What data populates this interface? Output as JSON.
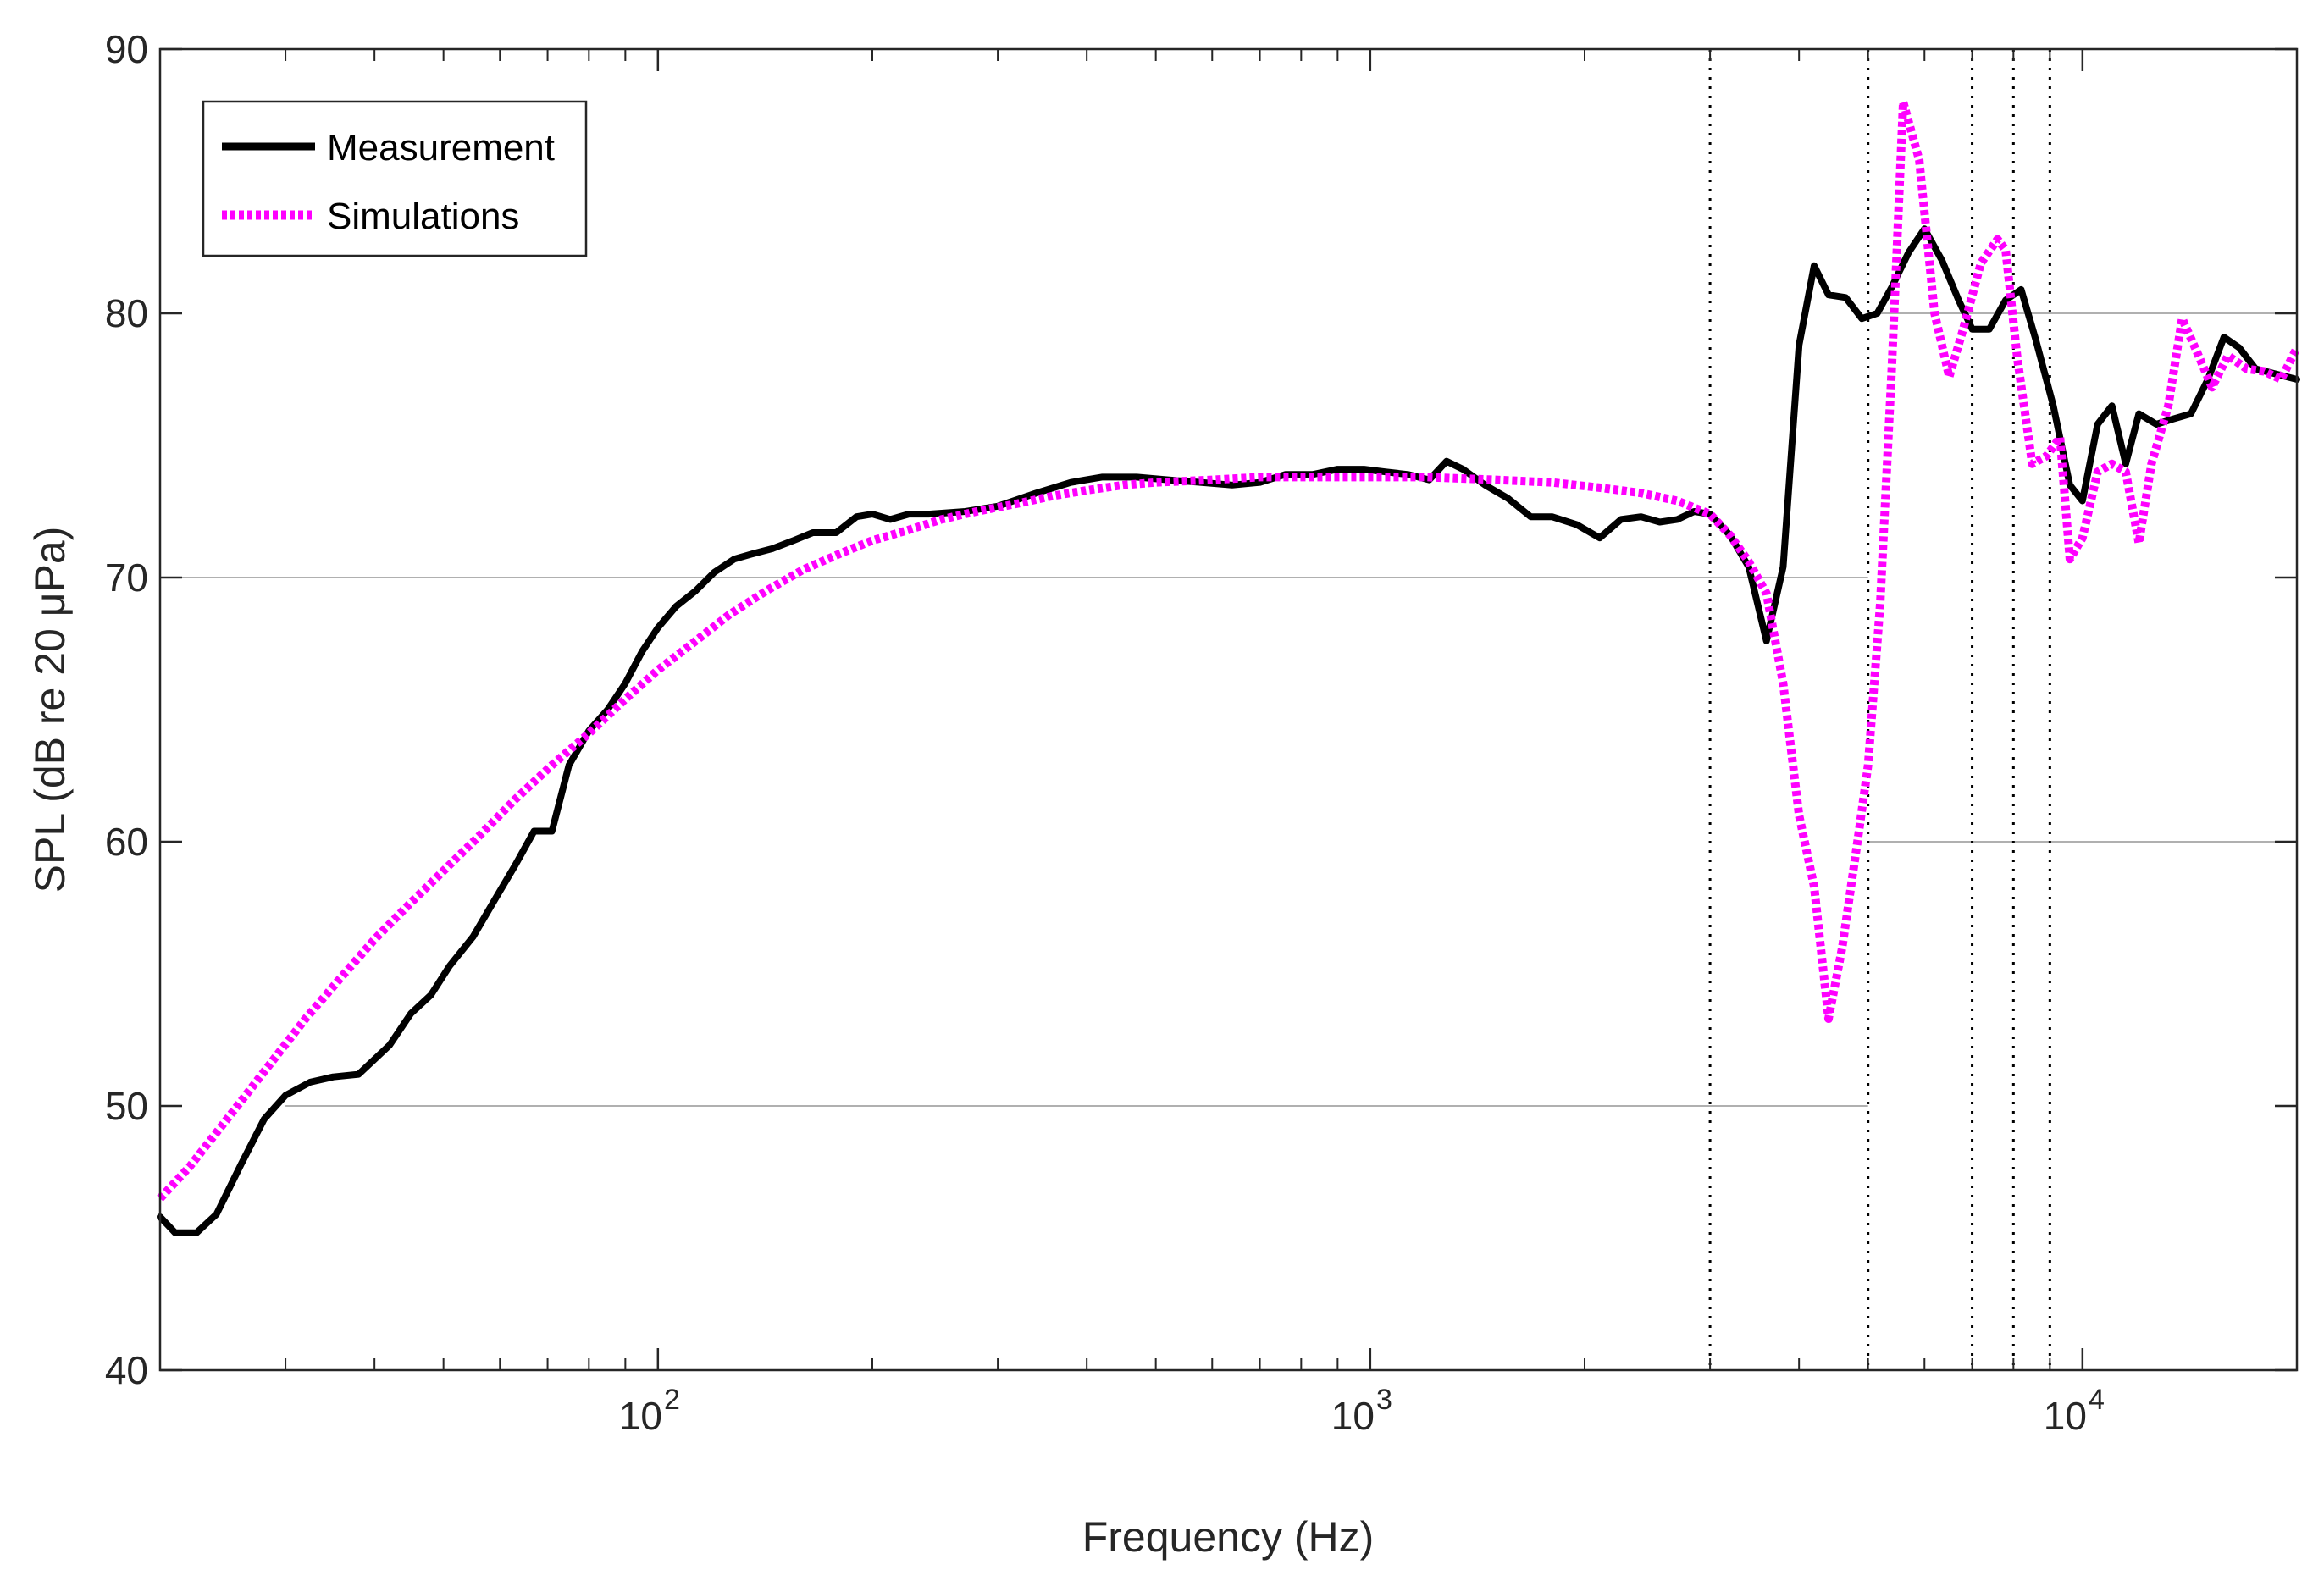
{
  "chart_data": {
    "type": "line",
    "xscale": "log",
    "xlim": [
      20,
      20000
    ],
    "ylim": [
      40,
      90
    ],
    "xlabel": "Frequency (Hz)",
    "ylabel": "SPL (dB re 20 μPa)",
    "yticks": [
      {
        "value": 40,
        "label": "40"
      },
      {
        "value": 50,
        "label": "50"
      },
      {
        "value": 60,
        "label": "60"
      },
      {
        "value": 70,
        "label": "70"
      },
      {
        "value": 80,
        "label": "80"
      },
      {
        "value": 90,
        "label": "90"
      }
    ],
    "xticks": [
      {
        "value": 100,
        "base": "10",
        "exp": "2"
      },
      {
        "value": 1000,
        "base": "10",
        "exp": "3"
      },
      {
        "value": 10000,
        "base": "10",
        "exp": "4"
      }
    ],
    "legend": {
      "placement": "top-left",
      "entries": [
        {
          "label": "Measurement",
          "color": "#000000",
          "style": "solid"
        },
        {
          "label": "Simulations",
          "color": "#ff00ff",
          "style": "dotted"
        }
      ]
    },
    "reference_lines": [
      {
        "y": 50,
        "x_from": 30,
        "x_to": 5000
      },
      {
        "y": 60,
        "x_from": 5000,
        "x_to": 20000
      },
      {
        "y": 70,
        "x_from": 20,
        "x_to": 5000
      },
      {
        "y": 80,
        "x_from": 5000,
        "x_to": 20000
      }
    ],
    "vertical_markers": [
      3000,
      5000,
      7000,
      8000,
      9000
    ],
    "series": [
      {
        "name": "Measurement",
        "color": "#000000",
        "points": [
          [
            20,
            45.8
          ],
          [
            21,
            45.2
          ],
          [
            22.5,
            45.2
          ],
          [
            24,
            45.9
          ],
          [
            26,
            47.8
          ],
          [
            28,
            49.5
          ],
          [
            30,
            50.4
          ],
          [
            32.5,
            50.9
          ],
          [
            35,
            51.1
          ],
          [
            38,
            51.2
          ],
          [
            42,
            52.3
          ],
          [
            45,
            53.5
          ],
          [
            48,
            54.2
          ],
          [
            51,
            55.3
          ],
          [
            55,
            56.4
          ],
          [
            59,
            57.8
          ],
          [
            63,
            59.1
          ],
          [
            67,
            60.4
          ],
          [
            71,
            60.4
          ],
          [
            75,
            62.9
          ],
          [
            80,
            64.2
          ],
          [
            85,
            65.0
          ],
          [
            90,
            66.0
          ],
          [
            95,
            67.2
          ],
          [
            100,
            68.1
          ],
          [
            106,
            68.9
          ],
          [
            113,
            69.5
          ],
          [
            120,
            70.2
          ],
          [
            128,
            70.7
          ],
          [
            136,
            70.9
          ],
          [
            145,
            71.1
          ],
          [
            155,
            71.4
          ],
          [
            165,
            71.7
          ],
          [
            178,
            71.7
          ],
          [
            190,
            72.3
          ],
          [
            200,
            72.4
          ],
          [
            212,
            72.2
          ],
          [
            225,
            72.4
          ],
          [
            240,
            72.4
          ],
          [
            270,
            72.5
          ],
          [
            300,
            72.7
          ],
          [
            340,
            73.2
          ],
          [
            380,
            73.6
          ],
          [
            420,
            73.8
          ],
          [
            470,
            73.8
          ],
          [
            520,
            73.7
          ],
          [
            580,
            73.6
          ],
          [
            640,
            73.5
          ],
          [
            700,
            73.6
          ],
          [
            760,
            73.9
          ],
          [
            830,
            73.9
          ],
          [
            900,
            74.1
          ],
          [
            980,
            74.1
          ],
          [
            1050,
            74.0
          ],
          [
            1130,
            73.9
          ],
          [
            1210,
            73.7
          ],
          [
            1280,
            74.4
          ],
          [
            1350,
            74.1
          ],
          [
            1450,
            73.5
          ],
          [
            1560,
            73.0
          ],
          [
            1680,
            72.3
          ],
          [
            1800,
            72.3
          ],
          [
            1950,
            72.0
          ],
          [
            2100,
            71.5
          ],
          [
            2250,
            72.2
          ],
          [
            2400,
            72.3
          ],
          [
            2550,
            72.1
          ],
          [
            2700,
            72.2
          ],
          [
            2850,
            72.5
          ],
          [
            3000,
            72.4
          ],
          [
            3200,
            71.6
          ],
          [
            3400,
            70.4
          ],
          [
            3600,
            67.6
          ],
          [
            3800,
            70.4
          ],
          [
            4000,
            78.8
          ],
          [
            4200,
            81.8
          ],
          [
            4400,
            80.7
          ],
          [
            4650,
            80.6
          ],
          [
            4900,
            79.8
          ],
          [
            5150,
            80.0
          ],
          [
            5400,
            81.0
          ],
          [
            5700,
            82.3
          ],
          [
            6000,
            83.2
          ],
          [
            6350,
            82.0
          ],
          [
            6700,
            80.5
          ],
          [
            7000,
            79.4
          ],
          [
            7400,
            79.4
          ],
          [
            7800,
            80.5
          ],
          [
            8200,
            80.9
          ],
          [
            8600,
            79.0
          ],
          [
            9100,
            76.5
          ],
          [
            9600,
            73.5
          ],
          [
            10000,
            72.9
          ],
          [
            10500,
            75.8
          ],
          [
            11000,
            76.5
          ],
          [
            11500,
            74.3
          ],
          [
            12000,
            76.2
          ],
          [
            12700,
            75.8
          ],
          [
            13400,
            76.0
          ],
          [
            14200,
            76.2
          ],
          [
            15000,
            77.5
          ],
          [
            15800,
            79.1
          ],
          [
            16600,
            78.7
          ],
          [
            17500,
            77.9
          ],
          [
            20000,
            77.5
          ]
        ]
      },
      {
        "name": "Simulations",
        "color": "#ff00ff",
        "points": [
          [
            20,
            46.5
          ],
          [
            22,
            47.7
          ],
          [
            25,
            49.6
          ],
          [
            28,
            51.3
          ],
          [
            32,
            53.3
          ],
          [
            36,
            54.9
          ],
          [
            40,
            56.3
          ],
          [
            45,
            57.7
          ],
          [
            50,
            58.9
          ],
          [
            56,
            60.2
          ],
          [
            63,
            61.6
          ],
          [
            71,
            62.9
          ],
          [
            80,
            64.1
          ],
          [
            90,
            65.4
          ],
          [
            100,
            66.5
          ],
          [
            113,
            67.6
          ],
          [
            126,
            68.6
          ],
          [
            142,
            69.5
          ],
          [
            160,
            70.3
          ],
          [
            180,
            70.9
          ],
          [
            200,
            71.4
          ],
          [
            225,
            71.8
          ],
          [
            250,
            72.2
          ],
          [
            280,
            72.5
          ],
          [
            320,
            72.8
          ],
          [
            360,
            73.1
          ],
          [
            400,
            73.3
          ],
          [
            450,
            73.5
          ],
          [
            500,
            73.6
          ],
          [
            600,
            73.7
          ],
          [
            700,
            73.8
          ],
          [
            800,
            73.8
          ],
          [
            1000,
            73.8
          ],
          [
            1200,
            73.8
          ],
          [
            1500,
            73.7
          ],
          [
            1800,
            73.6
          ],
          [
            2100,
            73.4
          ],
          [
            2400,
            73.2
          ],
          [
            2700,
            72.9
          ],
          [
            3000,
            72.4
          ],
          [
            3200,
            71.6
          ],
          [
            3400,
            70.6
          ],
          [
            3600,
            69.4
          ],
          [
            3800,
            66.0
          ],
          [
            4000,
            61.0
          ],
          [
            4200,
            58.3
          ],
          [
            4400,
            53.3
          ],
          [
            4600,
            56.0
          ],
          [
            4850,
            60.3
          ],
          [
            5000,
            62.9
          ],
          [
            5200,
            69.0
          ],
          [
            5400,
            78.0
          ],
          [
            5600,
            88.0
          ],
          [
            5900,
            85.8
          ],
          [
            6200,
            80.0
          ],
          [
            6500,
            77.6
          ],
          [
            6800,
            79.4
          ],
          [
            7200,
            81.9
          ],
          [
            7600,
            82.8
          ],
          [
            7800,
            82.4
          ],
          [
            8100,
            78.3
          ],
          [
            8500,
            74.3
          ],
          [
            8900,
            74.6
          ],
          [
            9300,
            75.3
          ],
          [
            9600,
            70.7
          ],
          [
            10000,
            71.5
          ],
          [
            10500,
            74.0
          ],
          [
            11000,
            74.3
          ],
          [
            11500,
            74.0
          ],
          [
            12000,
            71.3
          ],
          [
            12500,
            74.3
          ],
          [
            13200,
            76.5
          ],
          [
            13800,
            79.8
          ],
          [
            14500,
            78.5
          ],
          [
            15200,
            77.2
          ],
          [
            16000,
            78.4
          ],
          [
            17000,
            77.9
          ],
          [
            18000,
            77.8
          ],
          [
            19000,
            77.5
          ],
          [
            20000,
            78.7
          ]
        ]
      }
    ]
  }
}
